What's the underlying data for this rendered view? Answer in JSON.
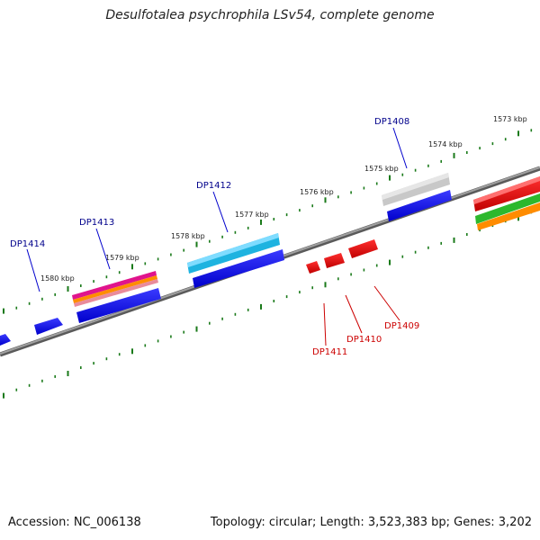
{
  "title": "Desulfotalea psychrophila LSv54, complete genome",
  "accession": "Accession: NC_006138",
  "summary": "Topology: circular; Length: 3,523,383 bp; Genes: 3,202",
  "colors": {
    "forward_label": "#00008b",
    "reverse_label": "#cc0000",
    "tick": "#1a7a1a",
    "backbone": "#808080"
  },
  "scale_labels": [
    "1573 kbp",
    "1574 kbp",
    "1575 kbp",
    "1576 kbp",
    "1577 kbp",
    "1578 kbp",
    "1579 kbp",
    "1580 kbp"
  ],
  "forward_genes": [
    "DP1408",
    "DP1412",
    "DP1413",
    "DP1414"
  ],
  "reverse_genes": [
    "DP1409",
    "DP1410",
    "DP1411"
  ]
}
